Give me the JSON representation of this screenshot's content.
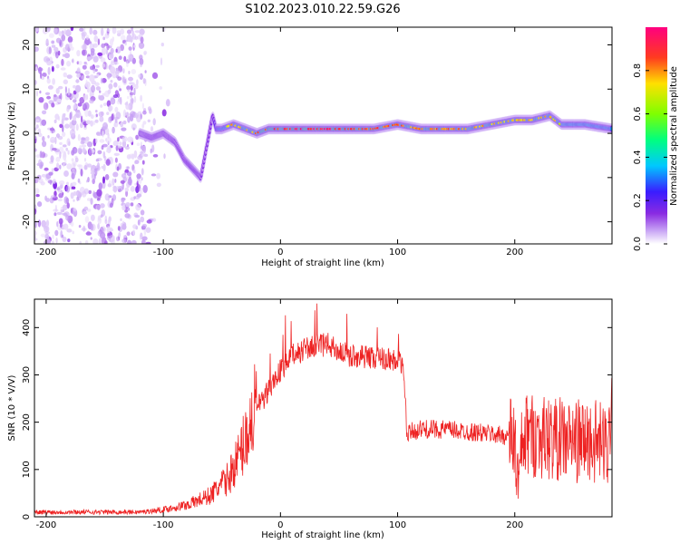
{
  "title": "S102.2023.010.22.59.G26",
  "colors": {
    "snr_line": "#ee2222",
    "spectrogram_scale": [
      "#ffffff",
      "#c9a6f5",
      "#8a2be2",
      "#3a1cff",
      "#00c8ff",
      "#00ff7f",
      "#7fff00",
      "#ffe000",
      "#ff3b1f",
      "#ff007f"
    ]
  },
  "chart_data": [
    {
      "id": "spectrogram",
      "type": "heatmap",
      "title": "",
      "xlabel": "Height of straight line (km)",
      "ylabel": "Frequency (Hz)",
      "xlim": [
        -210,
        283
      ],
      "ylim": [
        -25,
        24
      ],
      "xticks": [
        -200,
        -100,
        0,
        100,
        200
      ],
      "yticks": [
        -20,
        -10,
        0,
        10,
        20
      ],
      "colorbar": {
        "label": "Normalized spectral amplitude",
        "range": [
          0.0,
          1.0
        ],
        "ticks": [
          0.0,
          0.2,
          0.4,
          0.6,
          0.8
        ]
      },
      "signal_track": {
        "x": [
          -120,
          -110,
          -100,
          -90,
          -82,
          -75,
          -68,
          -63,
          -58,
          -55,
          -50,
          -40,
          -30,
          -20,
          -10,
          0,
          20,
          40,
          60,
          80,
          100,
          120,
          140,
          160,
          180,
          200,
          215,
          230,
          240,
          260,
          283
        ],
        "y": [
          0,
          -1,
          0,
          -2,
          -6,
          -8,
          -10,
          -3,
          4,
          1,
          1,
          2,
          1,
          0,
          1,
          1,
          1,
          1,
          1,
          1,
          2,
          1,
          1,
          1,
          2,
          3,
          3,
          4,
          2,
          2,
          1
        ],
        "amplitude": [
          0.2,
          0.3,
          0.25,
          0.3,
          0.35,
          0.4,
          0.3,
          0.3,
          0.35,
          0.6,
          0.7,
          0.8,
          0.8,
          0.85,
          0.9,
          0.9,
          0.95,
          0.95,
          0.9,
          0.9,
          0.85,
          0.85,
          0.85,
          0.85,
          0.8,
          0.8,
          0.8,
          0.8,
          0.75,
          0.75,
          0.7
        ]
      }
    },
    {
      "id": "snr",
      "type": "line",
      "title": "",
      "xlabel": "Height of straight line (km)",
      "ylabel": "SNR (10 * V/V)",
      "xlim": [
        -210,
        283
      ],
      "ylim": [
        0,
        460
      ],
      "xticks": [
        -200,
        -100,
        0,
        100,
        200
      ],
      "yticks": [
        0,
        100,
        200,
        300,
        400
      ],
      "series": [
        {
          "x": [
            -210,
            -180,
            -150,
            -120,
            -100,
            -80,
            -60,
            -45,
            -35,
            -25,
            -20,
            -15,
            -10,
            0,
            10,
            20,
            30,
            40,
            50,
            60,
            70,
            80,
            90,
            100,
            105,
            108,
            112,
            120,
            140,
            160,
            180,
            195,
            200,
            203,
            206,
            210,
            220,
            235,
            250,
            265,
            280,
            283
          ],
          "y": [
            10,
            10,
            10,
            10,
            15,
            25,
            45,
            80,
            130,
            200,
            240,
            240,
            270,
            310,
            340,
            355,
            360,
            365,
            350,
            340,
            340,
            335,
            335,
            330,
            320,
            170,
            180,
            185,
            185,
            180,
            175,
            170,
            160,
            60,
            140,
            175,
            170,
            165,
            160,
            160,
            150,
            280
          ]
        }
      ]
    }
  ]
}
